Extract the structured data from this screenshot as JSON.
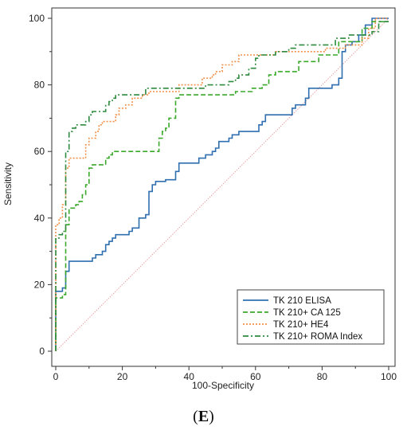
{
  "chart_data": {
    "type": "line",
    "xlabel": "100-Specificity",
    "ylabel": "Sensitivity",
    "xlim": [
      0,
      100
    ],
    "ylim": [
      0,
      100
    ],
    "x_ticks": [
      0,
      20,
      40,
      60,
      80,
      100
    ],
    "y_ticks": [
      0,
      20,
      40,
      60,
      80,
      100
    ],
    "grid": false,
    "legend_position": "bottom-right",
    "reference_line": {
      "from": [
        0,
        0
      ],
      "to": [
        100,
        100
      ],
      "color": "#e8a0a0",
      "style": "dotted"
    },
    "series": [
      {
        "name": "TK 210 ELISA",
        "color": "#2f6fb0",
        "style": "solid",
        "points": [
          [
            0,
            0
          ],
          [
            0,
            18
          ],
          [
            2,
            18
          ],
          [
            2,
            19
          ],
          [
            3,
            19
          ],
          [
            3,
            24
          ],
          [
            4,
            24
          ],
          [
            4,
            27
          ],
          [
            11,
            27
          ],
          [
            11,
            28
          ],
          [
            12,
            28
          ],
          [
            12,
            29
          ],
          [
            14,
            29
          ],
          [
            14,
            30
          ],
          [
            15,
            30
          ],
          [
            15,
            32
          ],
          [
            16,
            32
          ],
          [
            16,
            33
          ],
          [
            17,
            33
          ],
          [
            17,
            34
          ],
          [
            18,
            34
          ],
          [
            18,
            35
          ],
          [
            22,
            35
          ],
          [
            22,
            36
          ],
          [
            23,
            36
          ],
          [
            23,
            37
          ],
          [
            25,
            37
          ],
          [
            25,
            40
          ],
          [
            27,
            40
          ],
          [
            27,
            41
          ],
          [
            28,
            41
          ],
          [
            28,
            48
          ],
          [
            29,
            48
          ],
          [
            29,
            50
          ],
          [
            30,
            50
          ],
          [
            30,
            51
          ],
          [
            33,
            51
          ],
          [
            33,
            51.5
          ],
          [
            36,
            51.5
          ],
          [
            36,
            54
          ],
          [
            37,
            54
          ],
          [
            37,
            56.5
          ],
          [
            43,
            56.5
          ],
          [
            43,
            58
          ],
          [
            45,
            58
          ],
          [
            45,
            59
          ],
          [
            47,
            59
          ],
          [
            47,
            60
          ],
          [
            48,
            60
          ],
          [
            48,
            61
          ],
          [
            49,
            61
          ],
          [
            49,
            63
          ],
          [
            52,
            63
          ],
          [
            52,
            64
          ],
          [
            53,
            64
          ],
          [
            53,
            65
          ],
          [
            55,
            65
          ],
          [
            55,
            66
          ],
          [
            61,
            66
          ],
          [
            61,
            68
          ],
          [
            62,
            68
          ],
          [
            62,
            69
          ],
          [
            63,
            69
          ],
          [
            63,
            71
          ],
          [
            71,
            71
          ],
          [
            71,
            73
          ],
          [
            72,
            73
          ],
          [
            72,
            74
          ],
          [
            75,
            74
          ],
          [
            75,
            76
          ],
          [
            76,
            76
          ],
          [
            76,
            79
          ],
          [
            83,
            79
          ],
          [
            83,
            80
          ],
          [
            85,
            80
          ],
          [
            85,
            82
          ],
          [
            86,
            82
          ],
          [
            86,
            90
          ],
          [
            87,
            90
          ],
          [
            87,
            92
          ],
          [
            89,
            92
          ],
          [
            89,
            93
          ],
          [
            91,
            93
          ],
          [
            91,
            95
          ],
          [
            93,
            95
          ],
          [
            93,
            98
          ],
          [
            95,
            98
          ],
          [
            95,
            100
          ],
          [
            100,
            100
          ]
        ]
      },
      {
        "name": "TK 210+ CA 125",
        "color": "#3aa82a",
        "style": "dashed",
        "points": [
          [
            0,
            0
          ],
          [
            0,
            16
          ],
          [
            2,
            16
          ],
          [
            2,
            17
          ],
          [
            3,
            17
          ],
          [
            3,
            38
          ],
          [
            4,
            38
          ],
          [
            4,
            43
          ],
          [
            6,
            43
          ],
          [
            6,
            44
          ],
          [
            7,
            44
          ],
          [
            7,
            45
          ],
          [
            8,
            45
          ],
          [
            8,
            47
          ],
          [
            9,
            47
          ],
          [
            9,
            50
          ],
          [
            10,
            50
          ],
          [
            10,
            55
          ],
          [
            11,
            55
          ],
          [
            11,
            56
          ],
          [
            15,
            56
          ],
          [
            15,
            58
          ],
          [
            16,
            58
          ],
          [
            16,
            59
          ],
          [
            17,
            59
          ],
          [
            17,
            60
          ],
          [
            31,
            60
          ],
          [
            31,
            64
          ],
          [
            32,
            64
          ],
          [
            32,
            66
          ],
          [
            33,
            66
          ],
          [
            33,
            67
          ],
          [
            34,
            67
          ],
          [
            34,
            70
          ],
          [
            36,
            70
          ],
          [
            36,
            76
          ],
          [
            37,
            76
          ],
          [
            37,
            77
          ],
          [
            54,
            77
          ],
          [
            54,
            78
          ],
          [
            59,
            78
          ],
          [
            59,
            79
          ],
          [
            62,
            79
          ],
          [
            62,
            80
          ],
          [
            64,
            80
          ],
          [
            64,
            83
          ],
          [
            66,
            83
          ],
          [
            66,
            84
          ],
          [
            73,
            84
          ],
          [
            73,
            87
          ],
          [
            79,
            87
          ],
          [
            79,
            89
          ],
          [
            85,
            89
          ],
          [
            85,
            93
          ],
          [
            92,
            93
          ],
          [
            92,
            97
          ],
          [
            95,
            97
          ],
          [
            95,
            99
          ],
          [
            100,
            99
          ]
        ]
      },
      {
        "name": "TK 210+ HE4",
        "color": "#f0904a",
        "style": "dotted",
        "points": [
          [
            0,
            0
          ],
          [
            0,
            38
          ],
          [
            1,
            38
          ],
          [
            1,
            40
          ],
          [
            2,
            40
          ],
          [
            2,
            44
          ],
          [
            3,
            44
          ],
          [
            3,
            55
          ],
          [
            4,
            55
          ],
          [
            4,
            58
          ],
          [
            9,
            58
          ],
          [
            9,
            62
          ],
          [
            10,
            62
          ],
          [
            10,
            64
          ],
          [
            12,
            64
          ],
          [
            12,
            66
          ],
          [
            13,
            66
          ],
          [
            13,
            68
          ],
          [
            14,
            68
          ],
          [
            14,
            69
          ],
          [
            18,
            69
          ],
          [
            18,
            71
          ],
          [
            19,
            71
          ],
          [
            19,
            73
          ],
          [
            21,
            73
          ],
          [
            21,
            74
          ],
          [
            23,
            74
          ],
          [
            23,
            76
          ],
          [
            26,
            76
          ],
          [
            26,
            77
          ],
          [
            28,
            77
          ],
          [
            28,
            78
          ],
          [
            37,
            78
          ],
          [
            37,
            80
          ],
          [
            44,
            80
          ],
          [
            44,
            82
          ],
          [
            47,
            82
          ],
          [
            47,
            83
          ],
          [
            48,
            83
          ],
          [
            48,
            84
          ],
          [
            50,
            84
          ],
          [
            50,
            86
          ],
          [
            53,
            86
          ],
          [
            53,
            87
          ],
          [
            55,
            87
          ],
          [
            55,
            89
          ],
          [
            66,
            89
          ],
          [
            66,
            90
          ],
          [
            81,
            90
          ],
          [
            81,
            91
          ],
          [
            87,
            91
          ],
          [
            87,
            92
          ],
          [
            92,
            92
          ],
          [
            92,
            94
          ],
          [
            94,
            94
          ],
          [
            94,
            97
          ],
          [
            96,
            97
          ],
          [
            96,
            100
          ],
          [
            100,
            100
          ]
        ]
      },
      {
        "name": "TK 210+ ROMA Index",
        "color": "#2d8a3e",
        "style": "dashdot",
        "points": [
          [
            0,
            0
          ],
          [
            0,
            34
          ],
          [
            1,
            34
          ],
          [
            1,
            35
          ],
          [
            2,
            35
          ],
          [
            2,
            36
          ],
          [
            3,
            36
          ],
          [
            3,
            60
          ],
          [
            4,
            60
          ],
          [
            4,
            66
          ],
          [
            5,
            66
          ],
          [
            5,
            67
          ],
          [
            6,
            67
          ],
          [
            6,
            68
          ],
          [
            9,
            68
          ],
          [
            9,
            69
          ],
          [
            10,
            69
          ],
          [
            10,
            71
          ],
          [
            11,
            71
          ],
          [
            11,
            72
          ],
          [
            15,
            72
          ],
          [
            15,
            74
          ],
          [
            16,
            74
          ],
          [
            16,
            75
          ],
          [
            17,
            75
          ],
          [
            17,
            76
          ],
          [
            18,
            76
          ],
          [
            18,
            77
          ],
          [
            27,
            77
          ],
          [
            27,
            79
          ],
          [
            45,
            79
          ],
          [
            45,
            80
          ],
          [
            52,
            80
          ],
          [
            52,
            81
          ],
          [
            54,
            81
          ],
          [
            54,
            82
          ],
          [
            55,
            82
          ],
          [
            55,
            83
          ],
          [
            58,
            83
          ],
          [
            58,
            85
          ],
          [
            60,
            85
          ],
          [
            60,
            88
          ],
          [
            61,
            88
          ],
          [
            61,
            89
          ],
          [
            66,
            89
          ],
          [
            66,
            90
          ],
          [
            70,
            90
          ],
          [
            70,
            91
          ],
          [
            72,
            91
          ],
          [
            72,
            92
          ],
          [
            84,
            92
          ],
          [
            84,
            94
          ],
          [
            88,
            94
          ],
          [
            88,
            95
          ],
          [
            95,
            95
          ],
          [
            95,
            96
          ],
          [
            97,
            96
          ],
          [
            97,
            99
          ],
          [
            100,
            99
          ]
        ]
      }
    ]
  },
  "figure": {
    "panel_label_open": "(",
    "panel_label_letter": "E",
    "panel_label_close": ")"
  }
}
